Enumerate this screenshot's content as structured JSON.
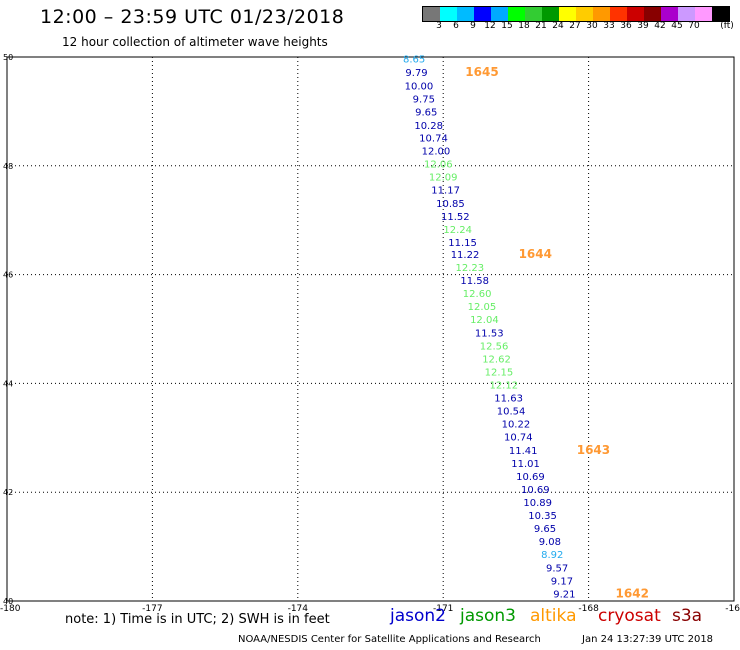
{
  "header": {
    "title": "12:00 – 23:59 UTC 01/23/2018",
    "subtitle": "12 hour collection of altimeter wave heights"
  },
  "colorbar": {
    "colors": [
      "#777777",
      "#00ffff",
      "#00bbff",
      "#0000ff",
      "#00aaff",
      "#00ff00",
      "#33cc33",
      "#009900",
      "#ffff00",
      "#ffcc00",
      "#ff9900",
      "#ff3300",
      "#cc0000",
      "#880000",
      "#aa00cc",
      "#cc99ff",
      "#ff99ff",
      "#000000"
    ],
    "labels": [
      "3",
      "6",
      "9",
      "12",
      "15",
      "18",
      "21",
      "24",
      "27",
      "30",
      "33",
      "36",
      "39",
      "42",
      "45",
      "70"
    ],
    "unit": "(ft)"
  },
  "axes": {
    "x_ticks": [
      "-180",
      "-177",
      "-174",
      "-171",
      "-168",
      "-16"
    ],
    "y_ticks": [
      "50",
      "48",
      "46",
      "44",
      "42",
      "40"
    ]
  },
  "observations": [
    {
      "lon": -171.6,
      "lat": 49.97,
      "value": "8.65",
      "color": "#22aaee"
    },
    {
      "lon": -171.55,
      "lat": 49.72,
      "value": "9.79",
      "color": "#0000aa"
    },
    {
      "lon": -171.5,
      "lat": 49.48,
      "value": "10.00",
      "color": "#0000aa"
    },
    {
      "lon": -171.4,
      "lat": 49.24,
      "value": "9.75",
      "color": "#0000aa"
    },
    {
      "lon": -171.35,
      "lat": 49.0,
      "value": "9.65",
      "color": "#0000aa"
    },
    {
      "lon": -171.3,
      "lat": 48.75,
      "value": "10.28",
      "color": "#0000aa"
    },
    {
      "lon": -171.2,
      "lat": 48.52,
      "value": "10.74",
      "color": "#0000aa"
    },
    {
      "lon": -171.15,
      "lat": 48.28,
      "value": "12.00",
      "color": "#0000aa"
    },
    {
      "lon": -171.1,
      "lat": 48.04,
      "value": "12.06",
      "color": "#66ee66"
    },
    {
      "lon": -171.0,
      "lat": 47.8,
      "value": "12.09",
      "color": "#66ee66"
    },
    {
      "lon": -170.95,
      "lat": 47.56,
      "value": "11.17",
      "color": "#0000aa"
    },
    {
      "lon": -170.85,
      "lat": 47.32,
      "value": "10.85",
      "color": "#0000aa"
    },
    {
      "lon": -170.75,
      "lat": 47.08,
      "value": "11.52",
      "color": "#0000aa"
    },
    {
      "lon": -170.7,
      "lat": 46.84,
      "value": "12.24",
      "color": "#66ee66"
    },
    {
      "lon": -170.6,
      "lat": 46.6,
      "value": "11.15",
      "color": "#0000aa"
    },
    {
      "lon": -170.55,
      "lat": 46.38,
      "value": "11.22",
      "color": "#0000aa"
    },
    {
      "lon": -170.45,
      "lat": 46.14,
      "value": "12.23",
      "color": "#66ee66"
    },
    {
      "lon": -170.35,
      "lat": 45.9,
      "value": "11.58",
      "color": "#0000aa"
    },
    {
      "lon": -170.3,
      "lat": 45.66,
      "value": "12.60",
      "color": "#66ee66"
    },
    {
      "lon": -170.2,
      "lat": 45.42,
      "value": "12.05",
      "color": "#66ee66"
    },
    {
      "lon": -170.15,
      "lat": 45.18,
      "value": "12.04",
      "color": "#66ee66"
    },
    {
      "lon": -170.05,
      "lat": 44.94,
      "value": "11.53",
      "color": "#0000aa"
    },
    {
      "lon": -169.95,
      "lat": 44.7,
      "value": "12.56",
      "color": "#66ee66"
    },
    {
      "lon": -169.9,
      "lat": 44.46,
      "value": "12.62",
      "color": "#66ee66"
    },
    {
      "lon": -169.85,
      "lat": 44.22,
      "value": "12.15",
      "color": "#66ee66"
    },
    {
      "lon": -169.75,
      "lat": 43.98,
      "value": "12.12",
      "color": "#66ee66"
    },
    {
      "lon": -169.65,
      "lat": 43.74,
      "value": "11.63",
      "color": "#0000aa"
    },
    {
      "lon": -169.6,
      "lat": 43.5,
      "value": "10.54",
      "color": "#0000aa"
    },
    {
      "lon": -169.5,
      "lat": 43.26,
      "value": "10.22",
      "color": "#0000aa"
    },
    {
      "lon": -169.45,
      "lat": 43.02,
      "value": "10.74",
      "color": "#0000aa"
    },
    {
      "lon": -169.35,
      "lat": 42.78,
      "value": "11.41",
      "color": "#0000aa"
    },
    {
      "lon": -169.3,
      "lat": 42.54,
      "value": "11.01",
      "color": "#0000aa"
    },
    {
      "lon": -169.2,
      "lat": 42.3,
      "value": "10.69",
      "color": "#0000aa"
    },
    {
      "lon": -169.1,
      "lat": 42.06,
      "value": "10.69",
      "color": "#0000aa"
    },
    {
      "lon": -169.05,
      "lat": 41.82,
      "value": "10.89",
      "color": "#0000aa"
    },
    {
      "lon": -168.95,
      "lat": 41.58,
      "value": "10.35",
      "color": "#0000aa"
    },
    {
      "lon": -168.9,
      "lat": 41.34,
      "value": "9.65",
      "color": "#0000aa"
    },
    {
      "lon": -168.8,
      "lat": 41.1,
      "value": "9.08",
      "color": "#0000aa"
    },
    {
      "lon": -168.75,
      "lat": 40.86,
      "value": "8.92",
      "color": "#22aaee"
    },
    {
      "lon": -168.65,
      "lat": 40.62,
      "value": "9.57",
      "color": "#0000aa"
    },
    {
      "lon": -168.55,
      "lat": 40.38,
      "value": "9.17",
      "color": "#0000aa"
    },
    {
      "lon": -168.5,
      "lat": 40.14,
      "value": "9.21",
      "color": "#0000aa"
    }
  ],
  "pass_labels": [
    {
      "lon": -170.2,
      "lat": 49.72,
      "text": "1645"
    },
    {
      "lon": -169.1,
      "lat": 46.38,
      "text": "1644"
    },
    {
      "lon": -167.9,
      "lat": 42.78,
      "text": "1643"
    },
    {
      "lon": -167.1,
      "lat": 40.14,
      "text": "1642"
    }
  ],
  "note": "note:  1) Time is in UTC;  2) SWH is in feet",
  "satellites": [
    {
      "name": "jason2",
      "color": "#0000cc"
    },
    {
      "name": "jason3",
      "color": "#009900"
    },
    {
      "name": "altika",
      "color": "#ff9900"
    },
    {
      "name": "cryosat",
      "color": "#cc0000"
    },
    {
      "name": "s3a",
      "color": "#880000"
    }
  ],
  "credit": "NOAA/NESDIS Center for Satellite Applications and Research",
  "stamp": "Jan 24 13:27:39 UTC 2018"
}
